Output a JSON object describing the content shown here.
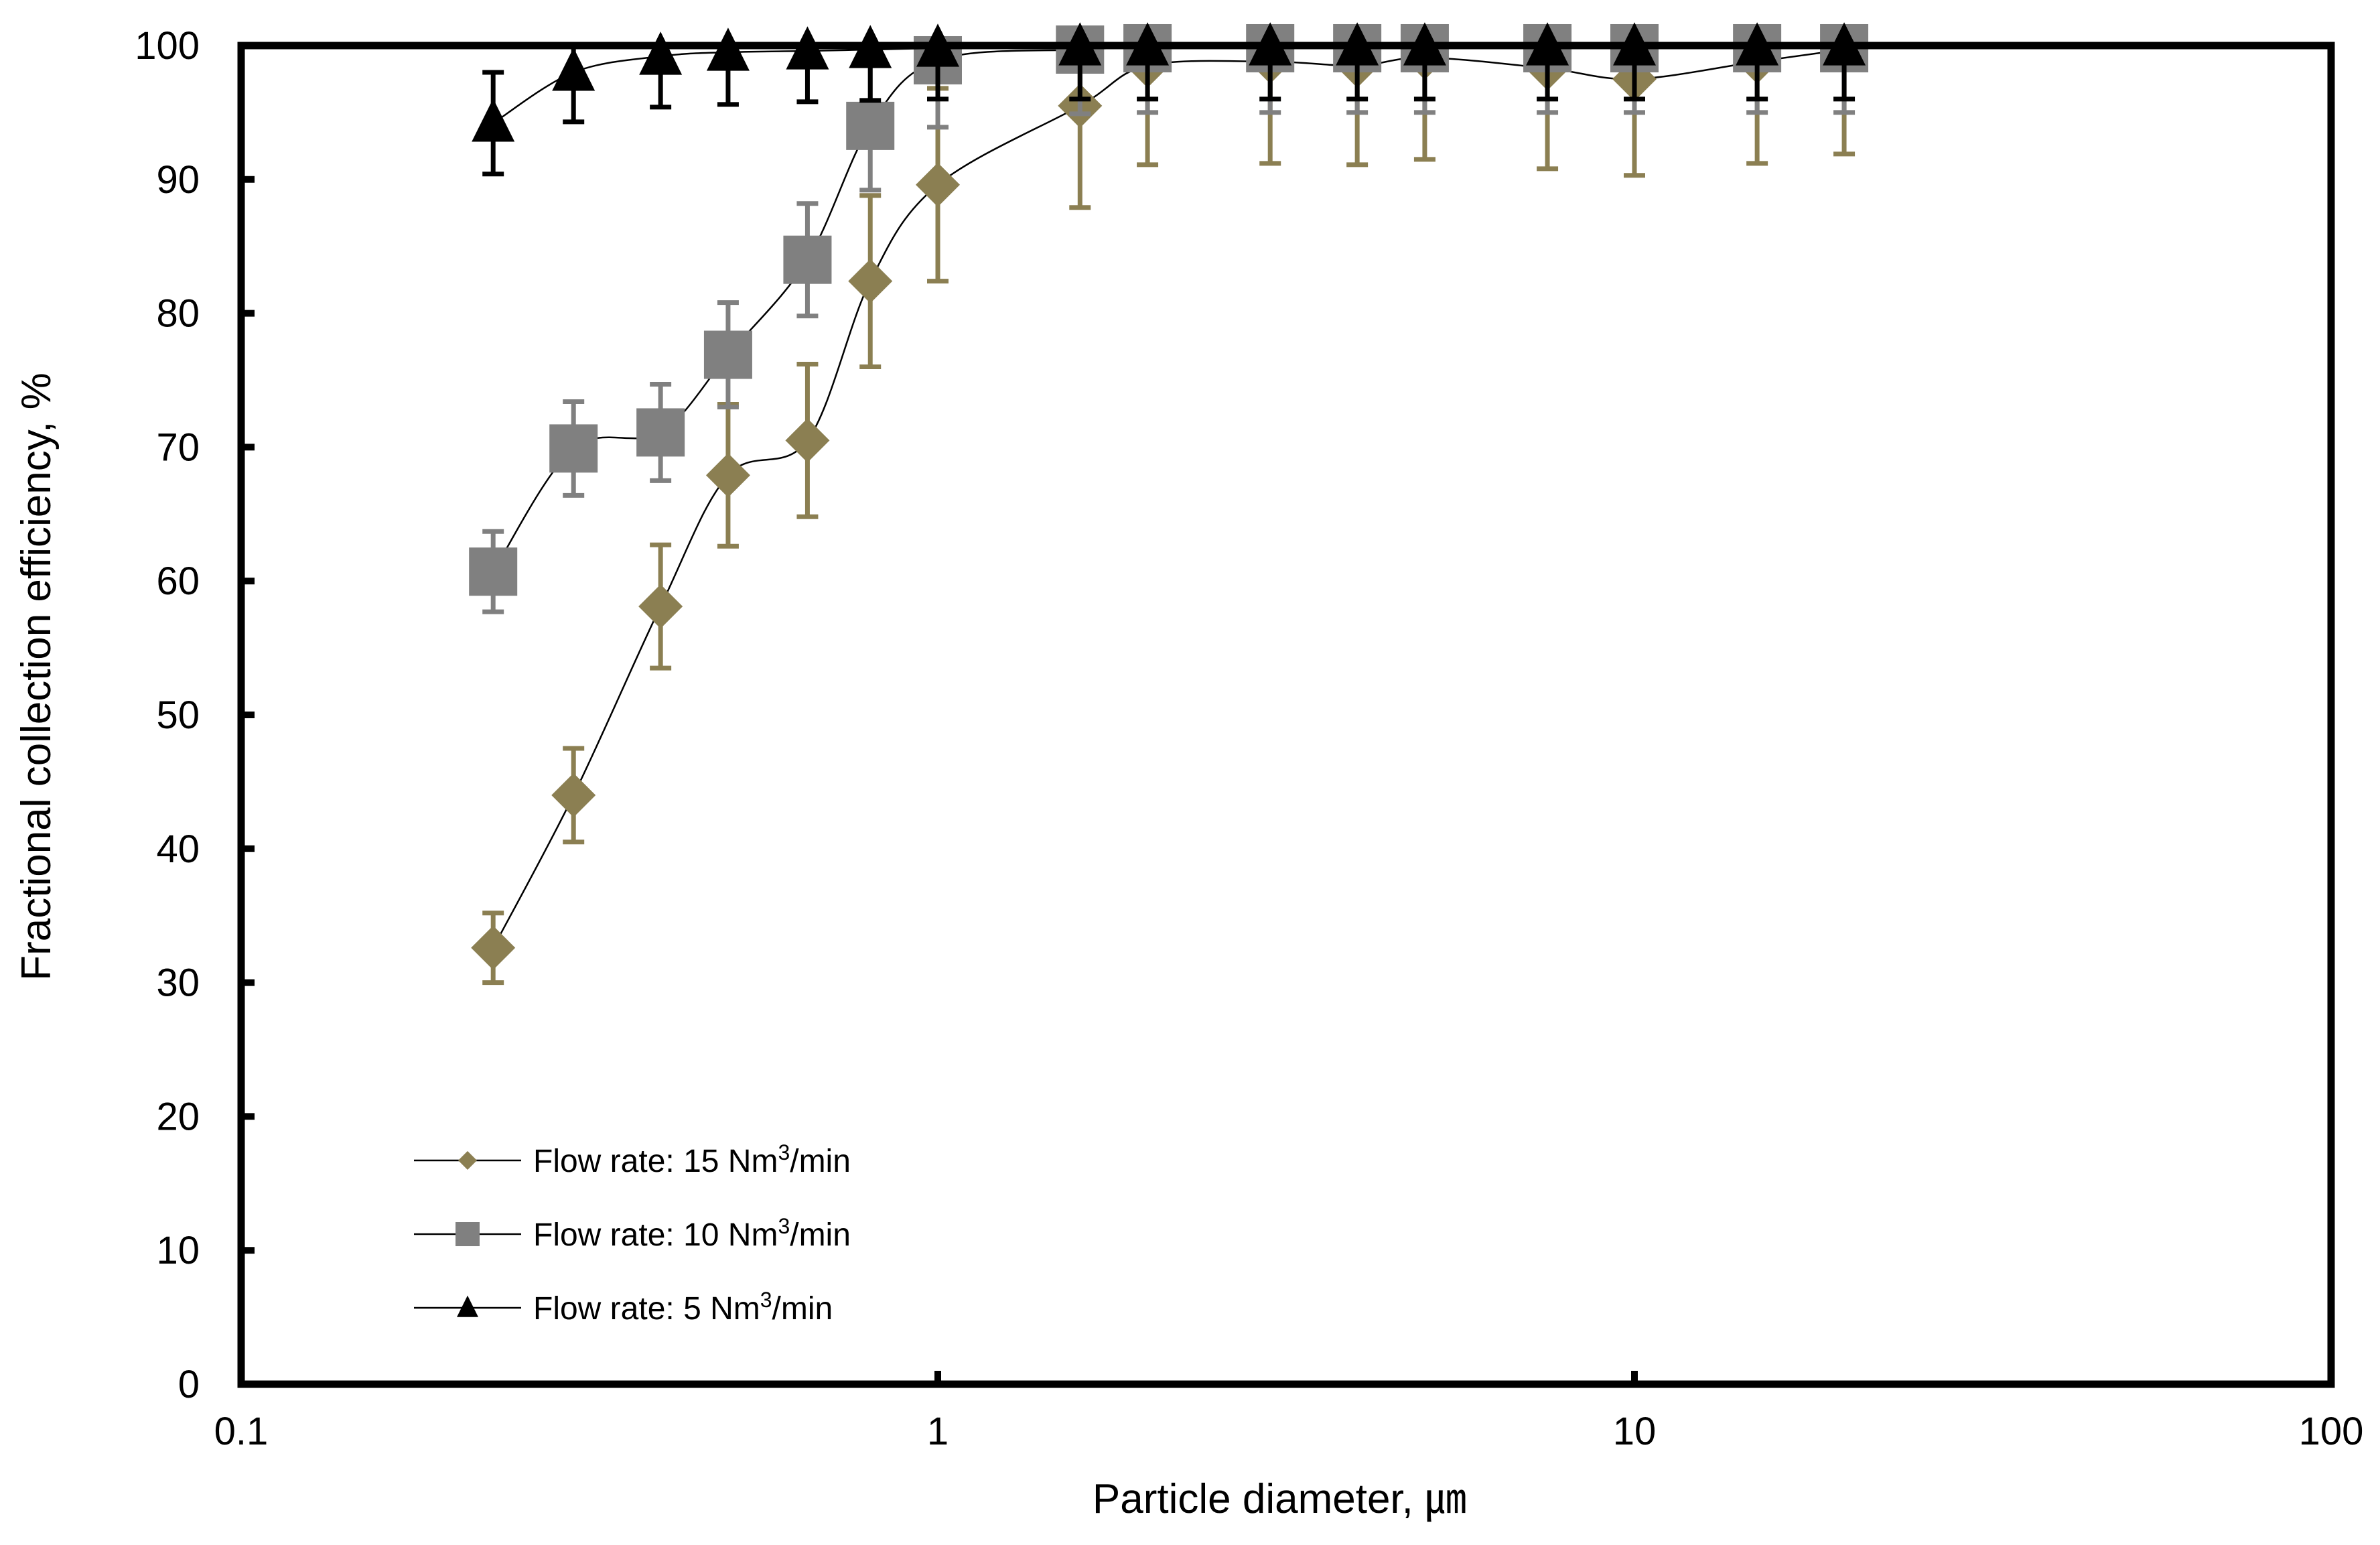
{
  "chart_data": {
    "type": "scatter",
    "x_scale": "log",
    "xlabel": "Particle diameter, ㎛",
    "ylabel": "Fractional collection efficiency, %",
    "xlim": [
      0.1,
      100
    ],
    "ylim": [
      0,
      100
    ],
    "x_ticks": [
      0.1,
      1,
      10,
      100
    ],
    "x_tick_labels": [
      "0.1",
      "1",
      "10",
      "100"
    ],
    "y_ticks": [
      0,
      10,
      20,
      30,
      40,
      50,
      60,
      70,
      80,
      90,
      100
    ],
    "y_tick_labels": [
      "0",
      "10",
      "20",
      "30",
      "40",
      "50",
      "60",
      "70",
      "80",
      "90",
      "100"
    ],
    "legend_position": "bottom-left",
    "series": [
      {
        "name": "Flow rate: 15 Nm3/min",
        "label_prefix": "Flow rate: 15 Nm",
        "label_sup": "3",
        "label_suffix": "/min",
        "marker": "diamond",
        "color": "#8b7f52",
        "x": [
          0.23,
          0.3,
          0.4,
          0.5,
          0.65,
          0.8,
          1.0,
          1.6,
          2.0,
          3.0,
          4.0,
          5.0,
          7.5,
          10.0,
          15.0,
          20.0
        ],
        "y": [
          32.6,
          44.0,
          58.1,
          67.9,
          70.5,
          82.4,
          89.6,
          95.5,
          98.5,
          98.8,
          98.5,
          99.1,
          98.3,
          97.5,
          98.8,
          99.7
        ],
        "err": [
          2.6,
          3.5,
          4.6,
          5.3,
          5.7,
          6.4,
          7.2,
          7.6,
          7.4,
          7.6,
          7.4,
          7.6,
          7.5,
          7.2,
          7.6,
          7.8
        ]
      },
      {
        "name": "Flow rate: 10 Nm3/min",
        "label_prefix": "Flow rate: 10 Nm",
        "label_sup": "3",
        "label_suffix": "/min",
        "marker": "square",
        "color": "#808080",
        "x": [
          0.23,
          0.3,
          0.4,
          0.5,
          0.65,
          0.8,
          1.0,
          1.6,
          2.0,
          3.0,
          4.0,
          5.0,
          7.5,
          10.0,
          15.0,
          20.0
        ],
        "y": [
          60.7,
          69.9,
          71.1,
          76.9,
          84.0,
          94.0,
          98.9,
          99.7,
          99.8,
          99.8,
          99.8,
          99.8,
          99.8,
          99.8,
          99.8,
          99.8
        ],
        "err": [
          3.0,
          3.5,
          3.6,
          3.9,
          4.2,
          4.8,
          5.0,
          4.8,
          4.8,
          4.8,
          4.8,
          4.8,
          4.8,
          4.8,
          4.8,
          4.8
        ]
      },
      {
        "name": "Flow rate: 5 Nm3/min",
        "label_prefix": "Flow rate: 5 Nm",
        "label_sup": "3",
        "label_suffix": "/min",
        "marker": "triangle",
        "color": "#000000",
        "x": [
          0.23,
          0.3,
          0.4,
          0.5,
          0.65,
          0.8,
          1.0,
          1.6,
          2.0,
          3.0,
          4.0,
          5.0,
          7.5,
          10.0,
          15.0,
          20.0
        ],
        "y": [
          94.2,
          98.0,
          99.2,
          99.5,
          99.6,
          99.7,
          99.8,
          99.9,
          99.9,
          99.9,
          99.9,
          99.9,
          99.9,
          99.9,
          99.9,
          99.9
        ],
        "err": [
          3.8,
          3.7,
          3.8,
          3.9,
          3.8,
          3.8,
          3.8,
          3.9,
          3.9,
          3.9,
          3.9,
          3.9,
          3.9,
          3.9,
          3.9,
          3.9
        ]
      }
    ]
  }
}
